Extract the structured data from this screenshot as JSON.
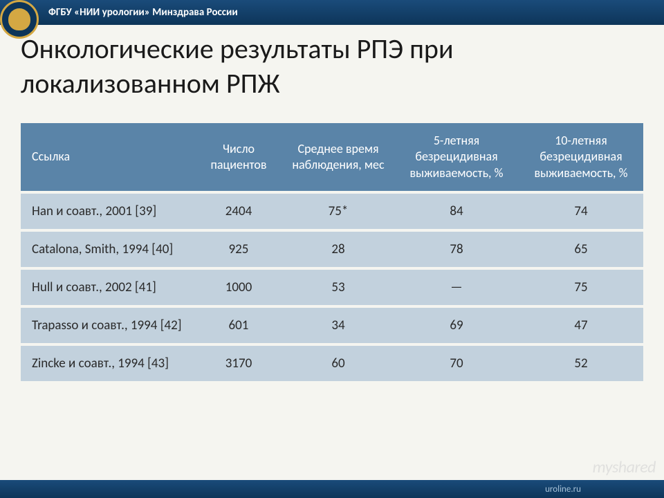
{
  "header": {
    "org_text": "ФГБУ «НИИ урологии» Минздрава России"
  },
  "title": "Онкологические результаты РПЭ при локализованном РПЖ",
  "table": {
    "header_bg": "#5a84a8",
    "header_text_color": "#ffffff",
    "row_bg": "#c2d1dd",
    "row_text_color": "#2a2a2a",
    "header_fontsize": 18,
    "cell_fontsize": 19,
    "columns": [
      "Ссылка",
      "Число пациентов",
      "Среднее время наблюдения, мес",
      "5-летняя безрецидивная выживаемость, %",
      "10-летняя безрецидивная выживаемость, %"
    ],
    "rows": [
      {
        "ref": "Han и соавт., 2001 [39]",
        "n": "2404",
        "followup": "75*",
        "surv5": "84",
        "surv10": "74"
      },
      {
        "ref": "Catalona, Smith, 1994 [40]",
        "n": "925",
        "followup": "28",
        "surv5": "78",
        "surv10": "65"
      },
      {
        "ref": "Hull и соавт., 2002 [41]",
        "n": "1000",
        "followup": "53",
        "surv5": "—",
        "surv10": "75"
      },
      {
        "ref": "Trapasso и соавт., 1994 [42]",
        "n": "601",
        "followup": "34",
        "surv5": "69",
        "surv10": "47"
      },
      {
        "ref": "Zincke и соавт., 1994 [43]",
        "n": "3170",
        "followup": "60",
        "surv5": "70",
        "surv10": "52"
      }
    ]
  },
  "footer": {
    "url": "uroline.ru"
  },
  "watermark": "myshared",
  "colors": {
    "slide_bg": "#f5f5f0",
    "header_bar_bg_top": "#1a4b7a",
    "header_bar_bg_bottom": "#0d3559",
    "title_color": "#1a1a1a",
    "logo_accent": "#d4a843"
  },
  "typography": {
    "title_fontsize": 40,
    "header_bar_fontsize": 15,
    "font_family": "Calibri"
  }
}
